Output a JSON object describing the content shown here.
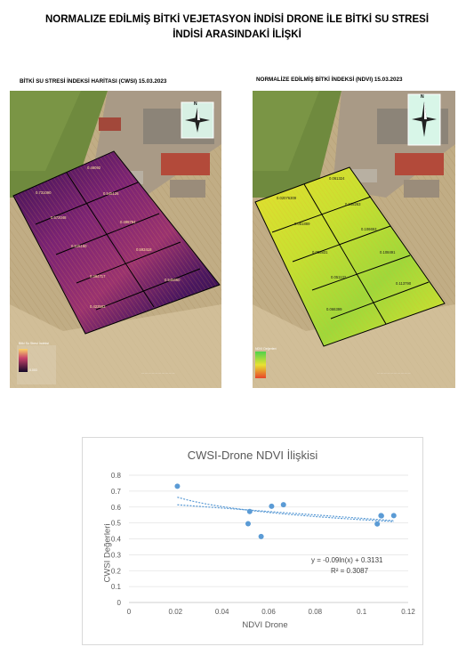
{
  "page": {
    "title_line1": "NORMALIZE EDİLMİŞ BİTKİ VEJETASYON İNDİSİ DRONE İLE BİTKİ SU STRESİ",
    "title_line2": "İNDİSİ ARASINDAKİ İLİŞKİ"
  },
  "maps": {
    "cwsi": {
      "title": "BİTKİ SU STRESİ İNDEKSİ HARİTASI (CWSI) 15.03.2023",
      "plot_labels": [
        "0.46092",
        "0.731090",
        "0.545126",
        "0.572048",
        "0.498784",
        "0.615160",
        "0.593418",
        "0.494717",
        "0.545660",
        "0.423583"
      ],
      "legend_title": "Bitki Su Stresi İndeksi",
      "legend_min": "0.003",
      "north_label": "N",
      "colors": {
        "low": "#1c0a33",
        "mid": "#8a2a6e",
        "high": "#f4a63a"
      }
    },
    "ndvi": {
      "title": "NORMALİZE EDİLMİŞ BİTKİ İNDEKSİ (NDVI) 15.03.2023",
      "plot_labels": [
        "0.061324",
        "0.02076309",
        "0.108263",
        "0.051889",
        "0.106653",
        "0.056831",
        "0.108491",
        "0.051132",
        "0.113790",
        "0.066399"
      ],
      "legend_title": "NDVI Değerleri",
      "north_label": "N",
      "colors": {
        "green": "#4fd14a",
        "yellow": "#d8e632",
        "red": "#e8452a"
      }
    }
  },
  "chart_data": {
    "type": "scatter",
    "title": "CWSI-Drone NDVI İlişkisi",
    "xlabel": "NDVI Drone",
    "ylabel": "CWSI Değerleri",
    "xlim": [
      0,
      0.12
    ],
    "ylim": [
      0,
      0.8
    ],
    "x_ticks": [
      "0",
      "0.02",
      "0.04",
      "0.06",
      "0.08",
      "0.1",
      "0.12"
    ],
    "y_ticks": [
      "0",
      "0.1",
      "0.2",
      "0.3",
      "0.4",
      "0.5",
      "0.6",
      "0.7",
      "0.8"
    ],
    "points": [
      {
        "x": 0.0208,
        "y": 0.731
      },
      {
        "x": 0.0512,
        "y": 0.495
      },
      {
        "x": 0.0519,
        "y": 0.572
      },
      {
        "x": 0.0568,
        "y": 0.415
      },
      {
        "x": 0.0613,
        "y": 0.605
      },
      {
        "x": 0.0664,
        "y": 0.615
      },
      {
        "x": 0.1067,
        "y": 0.494
      },
      {
        "x": 0.1083,
        "y": 0.546
      },
      {
        "x": 0.1085,
        "y": 0.545
      },
      {
        "x": 0.1138,
        "y": 0.546
      }
    ],
    "trendlines": [
      {
        "kind": "logarithmic",
        "a": -0.09,
        "b": 0.3131
      },
      {
        "kind": "linear"
      }
    ],
    "equation_text": "y = -0.09ln(x) + 0.3131",
    "r2_text": "R² = 0.3087",
    "grid": "horizontal",
    "point_color": "#5b9bd5"
  }
}
